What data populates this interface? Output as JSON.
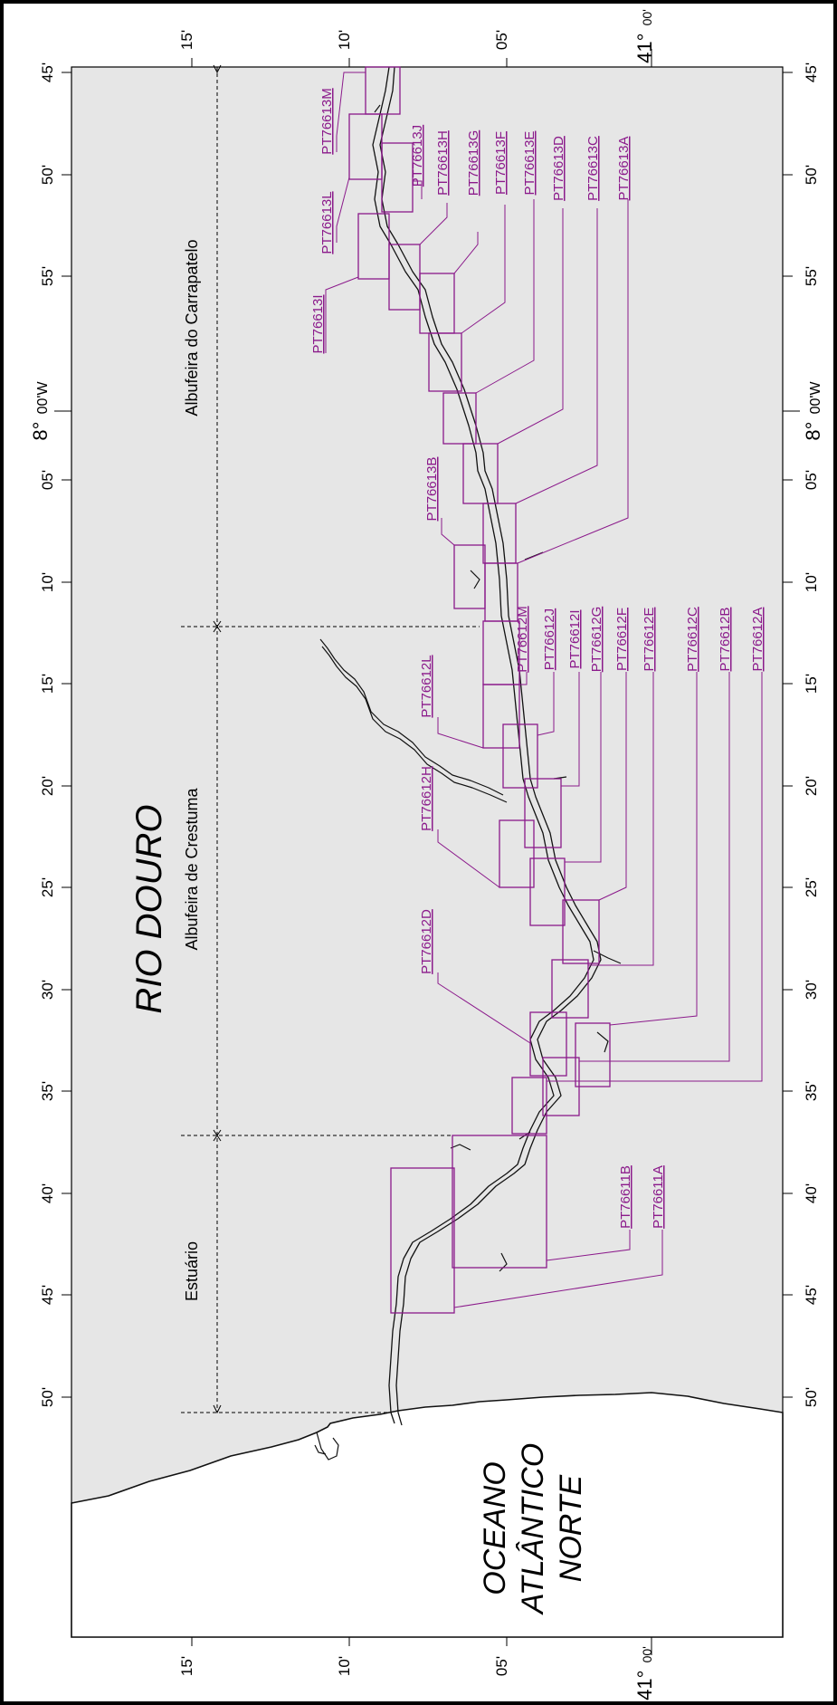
{
  "title": "RIO DOURO",
  "ocean": [
    "OCEANO",
    "ATLÂNTICO",
    "NORTE"
  ],
  "zones": [
    "Albufeira do Carrapatelo",
    "Albufeira de Crestuma",
    "Estuário"
  ],
  "longitude_ticks": {
    "major": "8°",
    "major_suffix": "00'W",
    "minutes": [
      "45'",
      "50'",
      "55'",
      "05'",
      "10'",
      "15'",
      "20'",
      "25'",
      "30'",
      "35'",
      "40'",
      "45'",
      "50'"
    ]
  },
  "latitude_ticks": {
    "major": "41°",
    "major_suffix": "00'",
    "minutes": [
      "15'",
      "10'",
      "05'"
    ]
  },
  "sheets": [
    "PT76613M",
    "PT76613L",
    "PT76613J",
    "PT76613H",
    "PT76613G",
    "PT76613F",
    "PT76613E",
    "PT76613D",
    "PT76613C",
    "PT76613A",
    "PT76613I",
    "PT76613B",
    "PT76612L",
    "PT76612M",
    "PT76612J",
    "PT76612I",
    "PT76612G",
    "PT76612F",
    "PT76612E",
    "PT76612C",
    "PT76612B",
    "PT76612A",
    "PT76612H",
    "PT76612D",
    "PT76611B",
    "PT76611A"
  ],
  "colors": {
    "map_background": "#e6e6e6",
    "sheet_outline": "#8b1a8b",
    "label_text": "#8b1a8b",
    "coastline": "#111111",
    "land": "#ffffff"
  }
}
